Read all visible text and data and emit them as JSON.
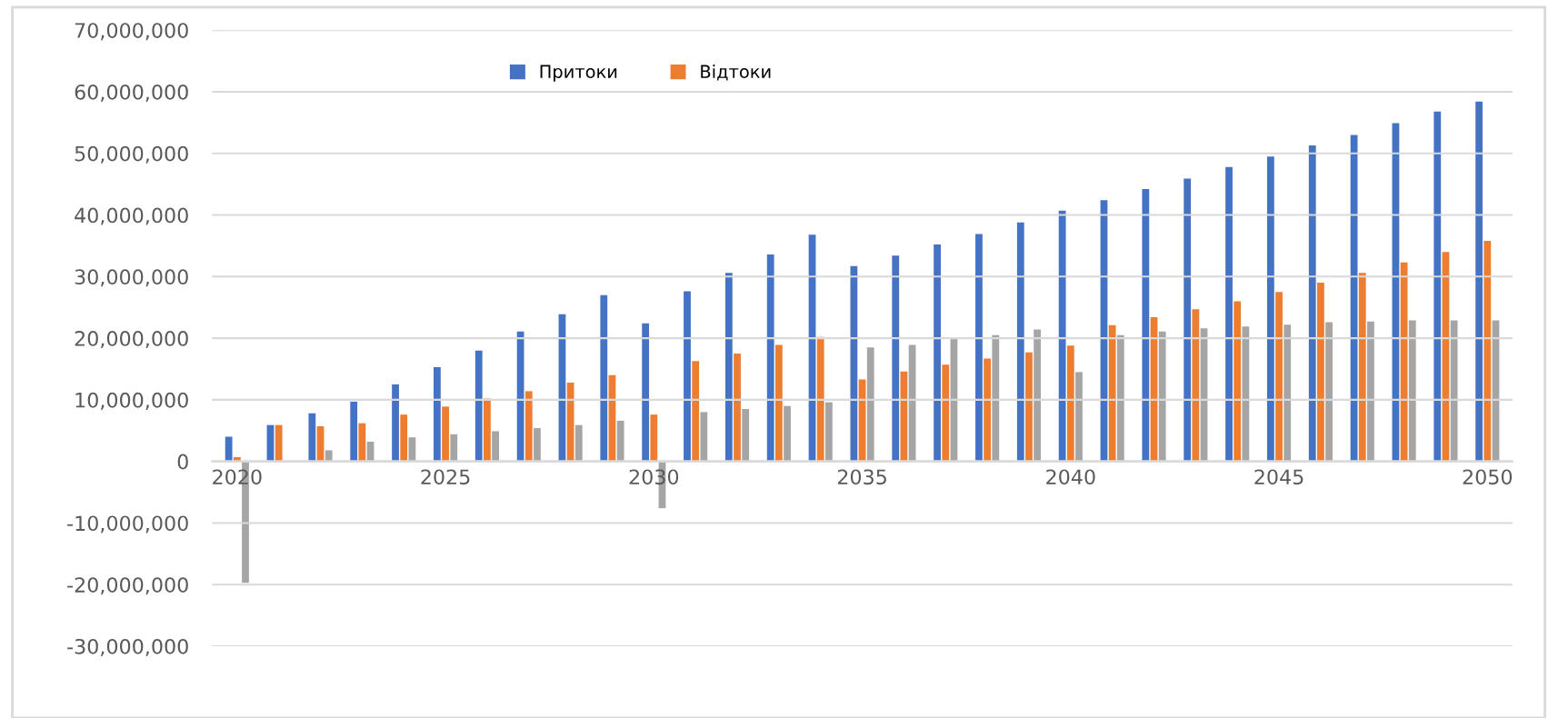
{
  "chart_data": {
    "type": "bar",
    "categories": [
      "2020",
      null,
      null,
      null,
      null,
      "2025",
      null,
      null,
      null,
      null,
      "2030",
      null,
      null,
      null,
      null,
      "2035",
      null,
      null,
      null,
      null,
      "2040",
      null,
      null,
      null,
      null,
      "2045",
      null,
      null,
      null,
      null,
      "2050"
    ],
    "series": [
      {
        "name": "Притоки",
        "color": "#4472c4",
        "values": [
          4000000,
          5900000,
          7800000,
          9700000,
          12500000,
          15300000,
          18000000,
          21100000,
          23900000,
          27000000,
          22400000,
          27600000,
          30600000,
          33600000,
          36800000,
          31700000,
          33400000,
          35200000,
          36900000,
          38800000,
          40700000,
          42400000,
          44200000,
          45900000,
          47800000,
          49500000,
          51300000,
          53000000,
          54900000,
          56800000,
          58400000
        ]
      },
      {
        "name": "Відтоки",
        "color": "#ed7d31",
        "values": [
          700000,
          5900000,
          5700000,
          6200000,
          7600000,
          8900000,
          10200000,
          11400000,
          12800000,
          14000000,
          7600000,
          16300000,
          17500000,
          18900000,
          20200000,
          13300000,
          14600000,
          15700000,
          16700000,
          17700000,
          18800000,
          22100000,
          23400000,
          24700000,
          26000000,
          27500000,
          29000000,
          30600000,
          32300000,
          34000000,
          35800000
        ]
      },
      {
        "color": "#a5a5a5",
        "values": [
          -19700000,
          0,
          1800000,
          3200000,
          3900000,
          4400000,
          4900000,
          5400000,
          5900000,
          6600000,
          -7600000,
          8000000,
          8500000,
          9000000,
          9600000,
          18500000,
          18900000,
          19900000,
          20500000,
          21400000,
          14500000,
          20500000,
          21100000,
          21600000,
          21900000,
          22200000,
          22600000,
          22700000,
          22900000,
          22900000,
          22900000
        ]
      }
    ],
    "ylim": [
      -30000000,
      70000000
    ],
    "yticks": [
      {
        "value": -30000000,
        "label": "-30,000,000"
      },
      {
        "value": -20000000,
        "label": "-20,000,000"
      },
      {
        "value": -10000000,
        "label": "-10,000,000"
      },
      {
        "value": 0,
        "label": "0"
      },
      {
        "value": 10000000,
        "label": "10,000,000"
      },
      {
        "value": 20000000,
        "label": "20,000,000"
      },
      {
        "value": 30000000,
        "label": "30,000,000"
      },
      {
        "value": 40000000,
        "label": "40,000,000"
      },
      {
        "value": 50000000,
        "label": "50,000,000"
      },
      {
        "value": 60000000,
        "label": "60,000,000"
      },
      {
        "value": 70000000,
        "label": "70,000,000"
      }
    ],
    "grid": "y",
    "legend": "top"
  }
}
